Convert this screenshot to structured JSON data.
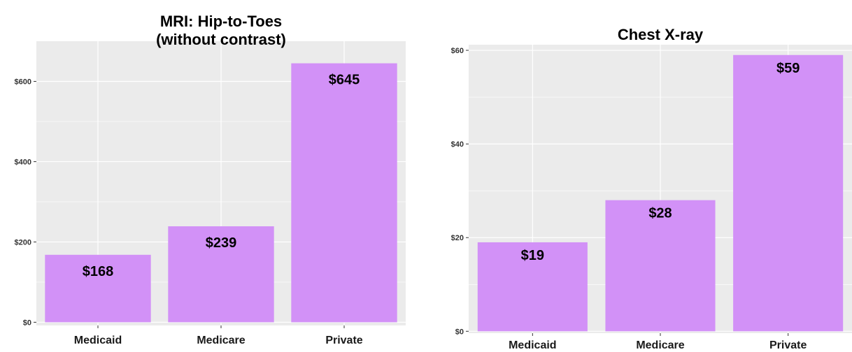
{
  "chart_data": [
    {
      "type": "bar",
      "title_lines": [
        "MRI: Hip-to-Toes",
        "(without contrast)"
      ],
      "categories": [
        "Medicaid",
        "Medicare",
        "Private"
      ],
      "values": [
        168,
        239,
        645
      ],
      "data_labels": [
        "$168",
        "$239",
        "$645"
      ],
      "yticks": [
        0,
        200,
        400,
        600
      ],
      "ytick_labels": [
        "$0",
        "$200",
        "$400",
        "$600"
      ],
      "ylim": [
        -8,
        700
      ],
      "grid": true,
      "bar_color": "#d291f7",
      "panel_color": "#ebebeb",
      "grid_color": "#ffffff"
    },
    {
      "type": "bar",
      "title_lines": [
        "Chest X-ray"
      ],
      "categories": [
        "Medicaid",
        "Medicare",
        "Private"
      ],
      "values": [
        19,
        28,
        59
      ],
      "data_labels": [
        "$19",
        "$28",
        "$59"
      ],
      "yticks": [
        0,
        20,
        40,
        60
      ],
      "ytick_labels": [
        "$0",
        "$20",
        "$40",
        "$60"
      ],
      "ylim": [
        -0.4,
        61.2
      ],
      "grid": true,
      "bar_color": "#d291f7",
      "panel_color": "#ebebeb",
      "grid_color": "#ffffff"
    }
  ]
}
